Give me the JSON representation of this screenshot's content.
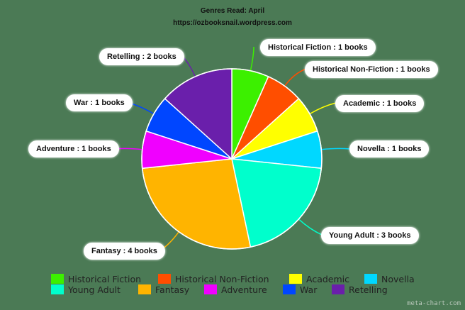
{
  "chart_data": {
    "type": "pie",
    "title": "Genres Read: April",
    "subtitle": "https://ozbooksnail.wordpress.com",
    "unit": "books",
    "categories": [
      "Historical Fiction",
      "Historical Non-Fiction",
      "Academic",
      "Novella",
      "Young Adult",
      "Fantasy",
      "Adventure",
      "War",
      "Retelling"
    ],
    "values": [
      1,
      1,
      1,
      1,
      3,
      4,
      1,
      1,
      2
    ],
    "colors": [
      "#3cf000",
      "#ff4e00",
      "#ffff00",
      "#00d8ff",
      "#00ffcc",
      "#ffb400",
      "#f000ff",
      "#0046ff",
      "#6a1fab"
    ],
    "labels": [
      "Historical Fiction : 1 books",
      "Historical Non-Fiction : 1 books",
      "Academic : 1 books",
      "Novella : 1 books",
      "Young Adult : 3 books",
      "Fantasy : 4 books",
      "Adventure : 1 books",
      "War : 1 books",
      "Retelling : 2 books"
    ],
    "start_angle": "12 o'clock, clockwise",
    "legend_position": "bottom"
  },
  "header": {
    "title": "Genres Read: April",
    "subtitle": "https://ozbooksnail.wordpress.com"
  },
  "legend": [
    {
      "label": "Historical Fiction",
      "color": "#3cf000"
    },
    {
      "label": "Historical Non-Fiction",
      "color": "#ff4e00"
    },
    {
      "label": "Academic",
      "color": "#ffff00"
    },
    {
      "label": "Novella",
      "color": "#00d8ff"
    },
    {
      "label": "Young Adult",
      "color": "#00ffcc"
    },
    {
      "label": "Fantasy",
      "color": "#ffb400"
    },
    {
      "label": "Adventure",
      "color": "#f000ff"
    },
    {
      "label": "War",
      "color": "#0046ff"
    },
    {
      "label": "Retelling",
      "color": "#6a1fab"
    }
  ],
  "watermark": "meta-chart.com"
}
